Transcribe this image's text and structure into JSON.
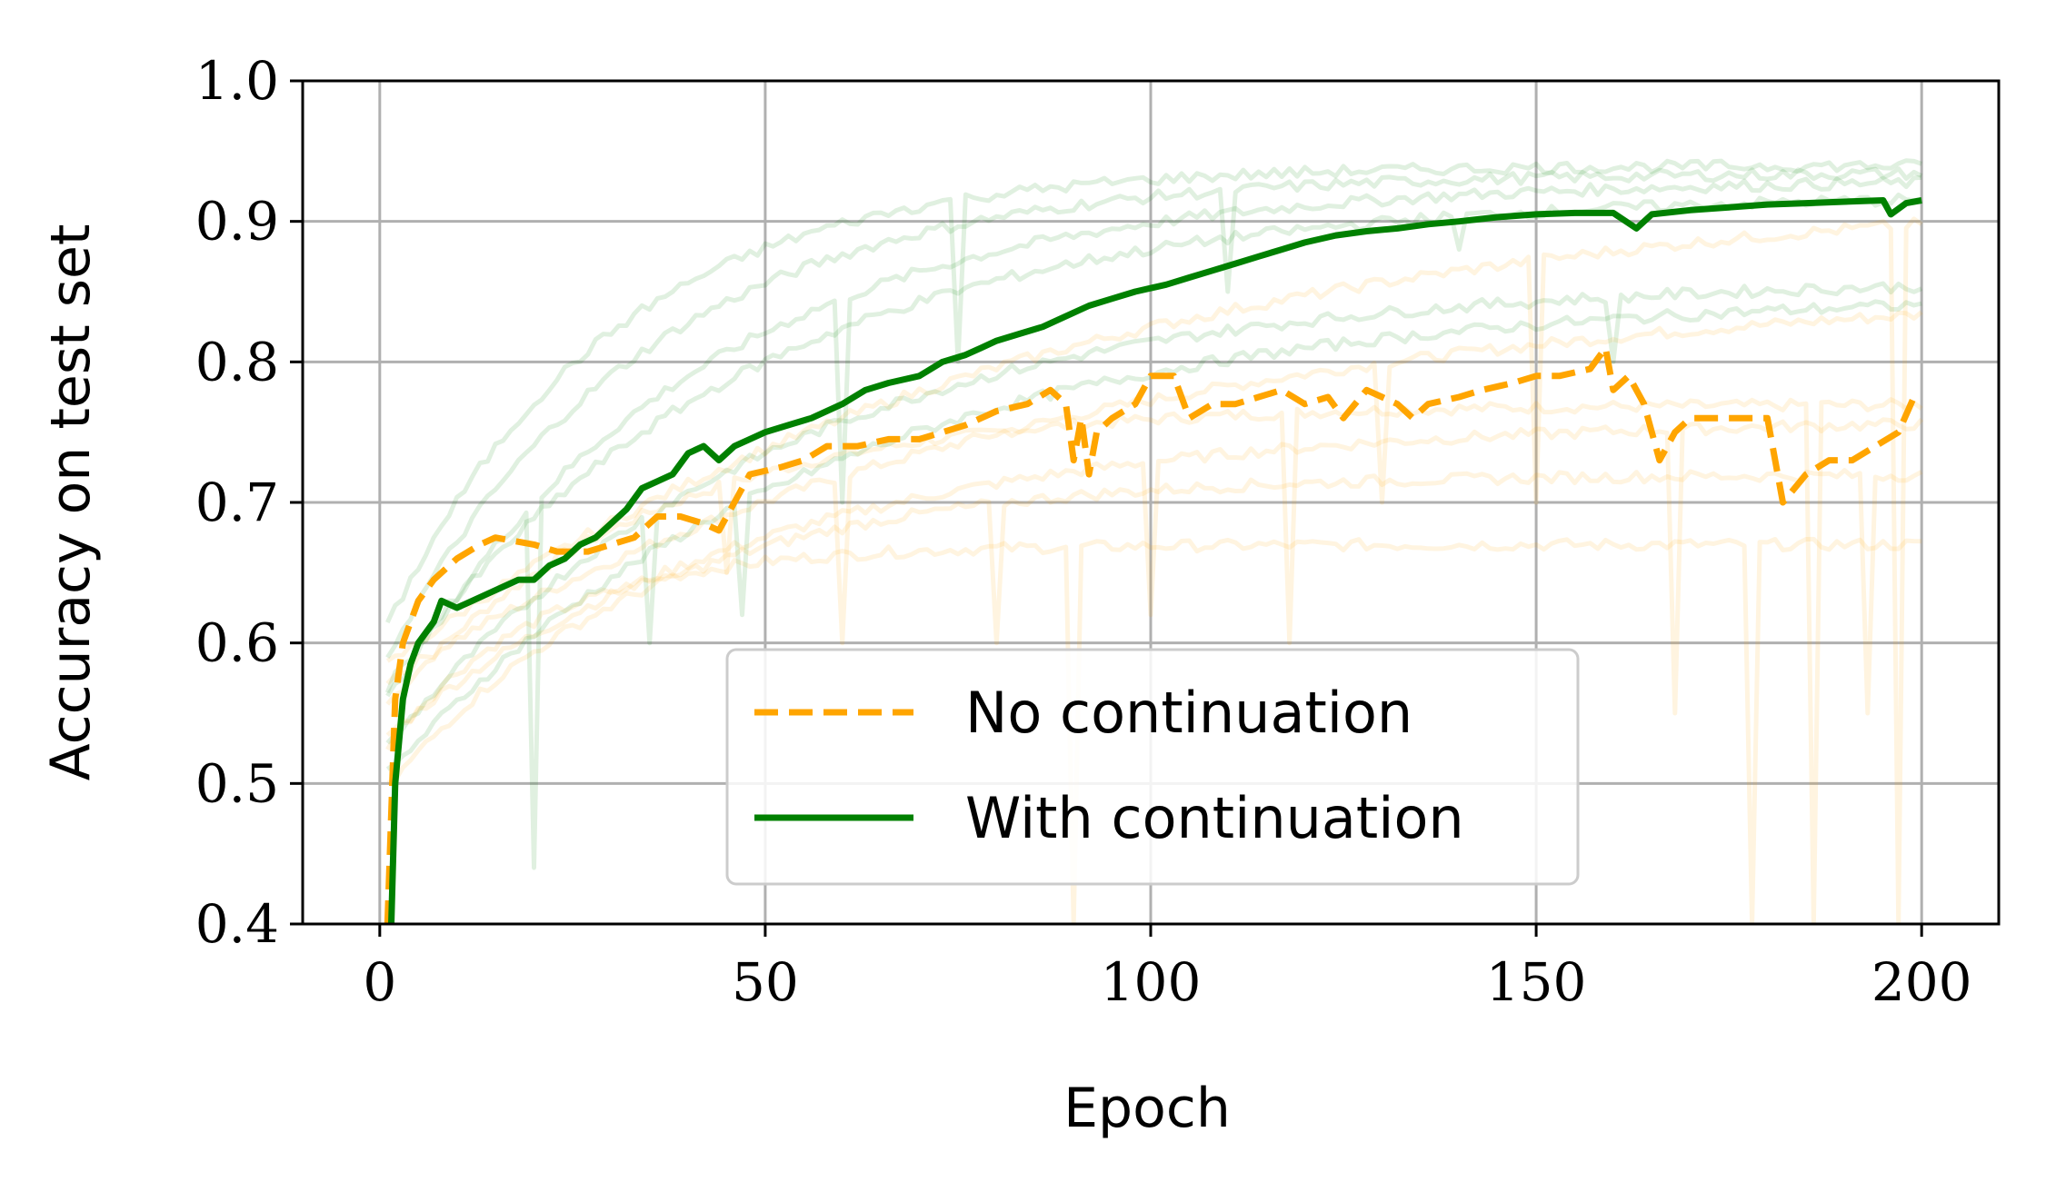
{
  "chart_data": {
    "type": "line",
    "xlabel": "Epoch",
    "ylabel": "Accuracy on test set",
    "xlim": [
      -10,
      210
    ],
    "ylim": [
      0.4,
      1.0
    ],
    "x_ticks": [
      "0",
      "50",
      "100",
      "150",
      "200"
    ],
    "y_ticks": [
      "0.4",
      "0.5",
      "0.6",
      "0.7",
      "0.8",
      "0.9",
      "1.0"
    ],
    "grid": true,
    "legend_position": "lower-center",
    "colors": {
      "no_continuation": "#FFA500",
      "with_continuation": "#008000"
    },
    "series": [
      {
        "name": "No continuation",
        "style": "dashed",
        "points": [
          [
            1,
            0.4
          ],
          [
            2,
            0.56
          ],
          [
            3,
            0.6
          ],
          [
            5,
            0.63
          ],
          [
            7,
            0.645
          ],
          [
            10,
            0.66
          ],
          [
            13,
            0.67
          ],
          [
            15,
            0.675
          ],
          [
            20,
            0.67
          ],
          [
            23,
            0.665
          ],
          [
            27,
            0.665
          ],
          [
            30,
            0.67
          ],
          [
            33,
            0.675
          ],
          [
            36,
            0.69
          ],
          [
            39,
            0.69
          ],
          [
            42,
            0.685
          ],
          [
            44,
            0.68
          ],
          [
            46,
            0.7
          ],
          [
            48,
            0.72
          ],
          [
            52,
            0.725
          ],
          [
            55,
            0.73
          ],
          [
            58,
            0.74
          ],
          [
            62,
            0.74
          ],
          [
            66,
            0.745
          ],
          [
            70,
            0.745
          ],
          [
            73,
            0.75
          ],
          [
            76,
            0.755
          ],
          [
            80,
            0.765
          ],
          [
            84,
            0.77
          ],
          [
            87,
            0.78
          ],
          [
            89,
            0.77
          ],
          [
            90,
            0.73
          ],
          [
            91,
            0.76
          ],
          [
            92,
            0.72
          ],
          [
            93,
            0.75
          ],
          [
            95,
            0.76
          ],
          [
            98,
            0.77
          ],
          [
            100,
            0.79
          ],
          [
            103,
            0.79
          ],
          [
            105,
            0.76
          ],
          [
            108,
            0.77
          ],
          [
            111,
            0.77
          ],
          [
            114,
            0.775
          ],
          [
            117,
            0.78
          ],
          [
            120,
            0.77
          ],
          [
            123,
            0.775
          ],
          [
            125,
            0.76
          ],
          [
            128,
            0.78
          ],
          [
            130,
            0.775
          ],
          [
            132,
            0.77
          ],
          [
            134,
            0.76
          ],
          [
            136,
            0.77
          ],
          [
            140,
            0.775
          ],
          [
            143,
            0.78
          ],
          [
            147,
            0.785
          ],
          [
            150,
            0.79
          ],
          [
            153,
            0.79
          ],
          [
            157,
            0.795
          ],
          [
            159,
            0.81
          ],
          [
            160,
            0.78
          ],
          [
            162,
            0.79
          ],
          [
            164,
            0.77
          ],
          [
            166,
            0.73
          ],
          [
            168,
            0.75
          ],
          [
            170,
            0.76
          ],
          [
            174,
            0.76
          ],
          [
            178,
            0.76
          ],
          [
            180,
            0.76
          ],
          [
            182,
            0.7
          ],
          [
            185,
            0.72
          ],
          [
            188,
            0.73
          ],
          [
            191,
            0.73
          ],
          [
            194,
            0.74
          ],
          [
            197,
            0.75
          ],
          [
            199,
            0.775
          ]
        ]
      },
      {
        "name": "With continuation",
        "style": "solid",
        "points": [
          [
            1.5,
            0.4
          ],
          [
            2,
            0.5
          ],
          [
            3,
            0.56
          ],
          [
            4,
            0.585
          ],
          [
            5,
            0.6
          ],
          [
            7,
            0.615
          ],
          [
            8,
            0.63
          ],
          [
            10,
            0.625
          ],
          [
            12,
            0.63
          ],
          [
            14,
            0.635
          ],
          [
            16,
            0.64
          ],
          [
            18,
            0.645
          ],
          [
            20,
            0.645
          ],
          [
            22,
            0.655
          ],
          [
            24,
            0.66
          ],
          [
            26,
            0.67
          ],
          [
            28,
            0.675
          ],
          [
            30,
            0.685
          ],
          [
            32,
            0.695
          ],
          [
            34,
            0.71
          ],
          [
            36,
            0.715
          ],
          [
            38,
            0.72
          ],
          [
            40,
            0.735
          ],
          [
            42,
            0.74
          ],
          [
            44,
            0.73
          ],
          [
            46,
            0.74
          ],
          [
            48,
            0.745
          ],
          [
            50,
            0.75
          ],
          [
            53,
            0.755
          ],
          [
            56,
            0.76
          ],
          [
            60,
            0.77
          ],
          [
            63,
            0.78
          ],
          [
            66,
            0.785
          ],
          [
            70,
            0.79
          ],
          [
            73,
            0.8
          ],
          [
            76,
            0.805
          ],
          [
            78,
            0.81
          ],
          [
            80,
            0.815
          ],
          [
            83,
            0.82
          ],
          [
            86,
            0.825
          ],
          [
            88,
            0.83
          ],
          [
            90,
            0.835
          ],
          [
            92,
            0.84
          ],
          [
            95,
            0.845
          ],
          [
            98,
            0.85
          ],
          [
            102,
            0.855
          ],
          [
            105,
            0.86
          ],
          [
            108,
            0.865
          ],
          [
            111,
            0.87
          ],
          [
            114,
            0.875
          ],
          [
            117,
            0.88
          ],
          [
            120,
            0.885
          ],
          [
            124,
            0.89
          ],
          [
            128,
            0.893
          ],
          [
            132,
            0.895
          ],
          [
            136,
            0.898
          ],
          [
            140,
            0.9
          ],
          [
            145,
            0.903
          ],
          [
            150,
            0.905
          ],
          [
            155,
            0.906
          ],
          [
            160,
            0.906
          ],
          [
            163,
            0.895
          ],
          [
            165,
            0.905
          ],
          [
            170,
            0.908
          ],
          [
            175,
            0.91
          ],
          [
            180,
            0.912
          ],
          [
            185,
            0.913
          ],
          [
            190,
            0.914
          ],
          [
            195,
            0.915
          ],
          [
            196,
            0.905
          ],
          [
            198,
            0.913
          ],
          [
            200,
            0.915
          ]
        ]
      }
    ],
    "background_runs": {
      "no_continuation": [
        {
          "start": 0.55,
          "plateau": 0.77,
          "rate": 0.03,
          "dips": [
            [
              45,
              0.65
            ],
            [
              118,
              0.6
            ],
            [
              186,
              0.4
            ]
          ]
        },
        {
          "start": 0.57,
          "plateau": 0.86,
          "rate": 0.012,
          "dips": [
            [
              60,
              0.6
            ],
            [
              130,
              0.7
            ]
          ]
        },
        {
          "start": 0.52,
          "plateau": 0.67,
          "rate": 0.05,
          "dips": [
            [
              90,
              0.4
            ],
            [
              178,
              0.4
            ]
          ]
        },
        {
          "start": 0.53,
          "plateau": 0.76,
          "rate": 0.02,
          "dips": [
            [
              100,
              0.62
            ],
            [
              168,
              0.55
            ]
          ]
        },
        {
          "start": 0.58,
          "plateau": 0.93,
          "rate": 0.012,
          "dips": [
            [
              150,
              0.7
            ],
            [
              197,
              0.4
            ]
          ]
        },
        {
          "start": 0.49,
          "plateau": 0.72,
          "rate": 0.03,
          "dips": [
            [
              80,
              0.6
            ],
            [
              193,
              0.55
            ]
          ]
        }
      ],
      "with_continuation": [
        {
          "start": 0.55,
          "plateau": 0.93,
          "rate": 0.025,
          "dips": [
            [
              20,
              0.44
            ],
            [
              60,
              0.7
            ]
          ]
        },
        {
          "start": 0.58,
          "plateau": 0.935,
          "rate": 0.03,
          "dips": [
            [
              110,
              0.85
            ]
          ]
        },
        {
          "start": 0.52,
          "plateau": 0.86,
          "rate": 0.02,
          "dips": [
            [
              35,
              0.6
            ],
            [
              160,
              0.8
            ]
          ]
        },
        {
          "start": 0.5,
          "plateau": 0.85,
          "rate": 0.018,
          "dips": [
            [
              47,
              0.62
            ]
          ]
        },
        {
          "start": 0.56,
          "plateau": 0.92,
          "rate": 0.022,
          "dips": [
            [
              140,
              0.88
            ]
          ]
        },
        {
          "start": 0.6,
          "plateau": 0.94,
          "rate": 0.035,
          "dips": [
            [
              75,
              0.8
            ]
          ]
        }
      ]
    }
  },
  "legend": {
    "no_continuation": "No continuation",
    "with_continuation": "With continuation"
  }
}
